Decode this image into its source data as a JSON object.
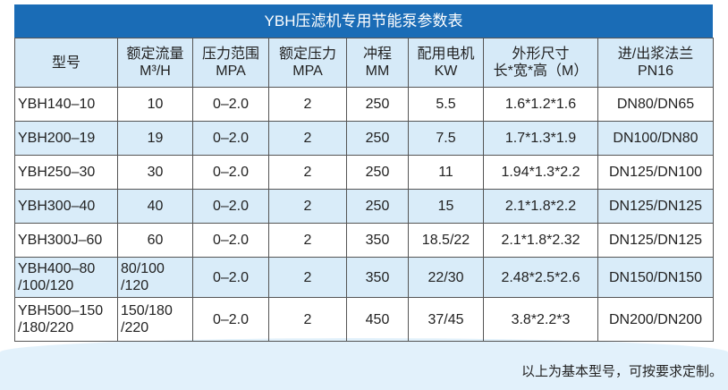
{
  "title": "YBH压滤机专用节能泵参数表",
  "headers": [
    [
      "型号",
      ""
    ],
    [
      "额定流量",
      "M³/H"
    ],
    [
      "压力范围",
      "MPA"
    ],
    [
      "额定压力",
      "MPA"
    ],
    [
      "冲程",
      "MM"
    ],
    [
      "配用电机",
      "KW"
    ],
    [
      "外形尺寸",
      "长*宽*高（M）"
    ],
    [
      "进/出浆法兰",
      "PN16"
    ]
  ],
  "rows": [
    [
      "YBH140–10",
      "10",
      "0–2.0",
      "2",
      "250",
      "5.5",
      "1.6*1.2*1.6",
      "DN80/DN65"
    ],
    [
      "YBH200–19",
      "19",
      "0–2.0",
      "2",
      "250",
      "7.5",
      "1.7*1.3*1.9",
      "DN100/DN80"
    ],
    [
      "YBH250–30",
      "30",
      "0–2.0",
      "2",
      "250",
      "11",
      "1.94*1.3*2.2",
      "DN125/DN100"
    ],
    [
      "YBH300–40",
      "40",
      "0–2.0",
      "2",
      "250",
      "15",
      "2.1*1.8*2.2",
      "DN125/DN125"
    ],
    [
      "YBH300J–60",
      "60",
      "0–2.0",
      "2",
      "350",
      "18.5/22",
      "2.1*1.8*2.32",
      "DN125/DN125"
    ],
    [
      "YBH400–80 /100/120",
      "80/100 /120",
      "0–2.0",
      "2",
      "350",
      "22/30",
      "2.48*2.5*2.6",
      "DN150/DN150"
    ],
    [
      "YBH500–150 /180/220",
      "150/180 /220",
      "0–2.0",
      "2",
      "450",
      "37/45",
      "3.8*2.2*3",
      "DN200/DN200"
    ]
  ],
  "footer": "以上为基本型号，可按要求定制。",
  "colors": {
    "title_bg": "#1a6cb6",
    "header_bg": "#d6eaf8",
    "stripe": "#d9ecf9"
  }
}
